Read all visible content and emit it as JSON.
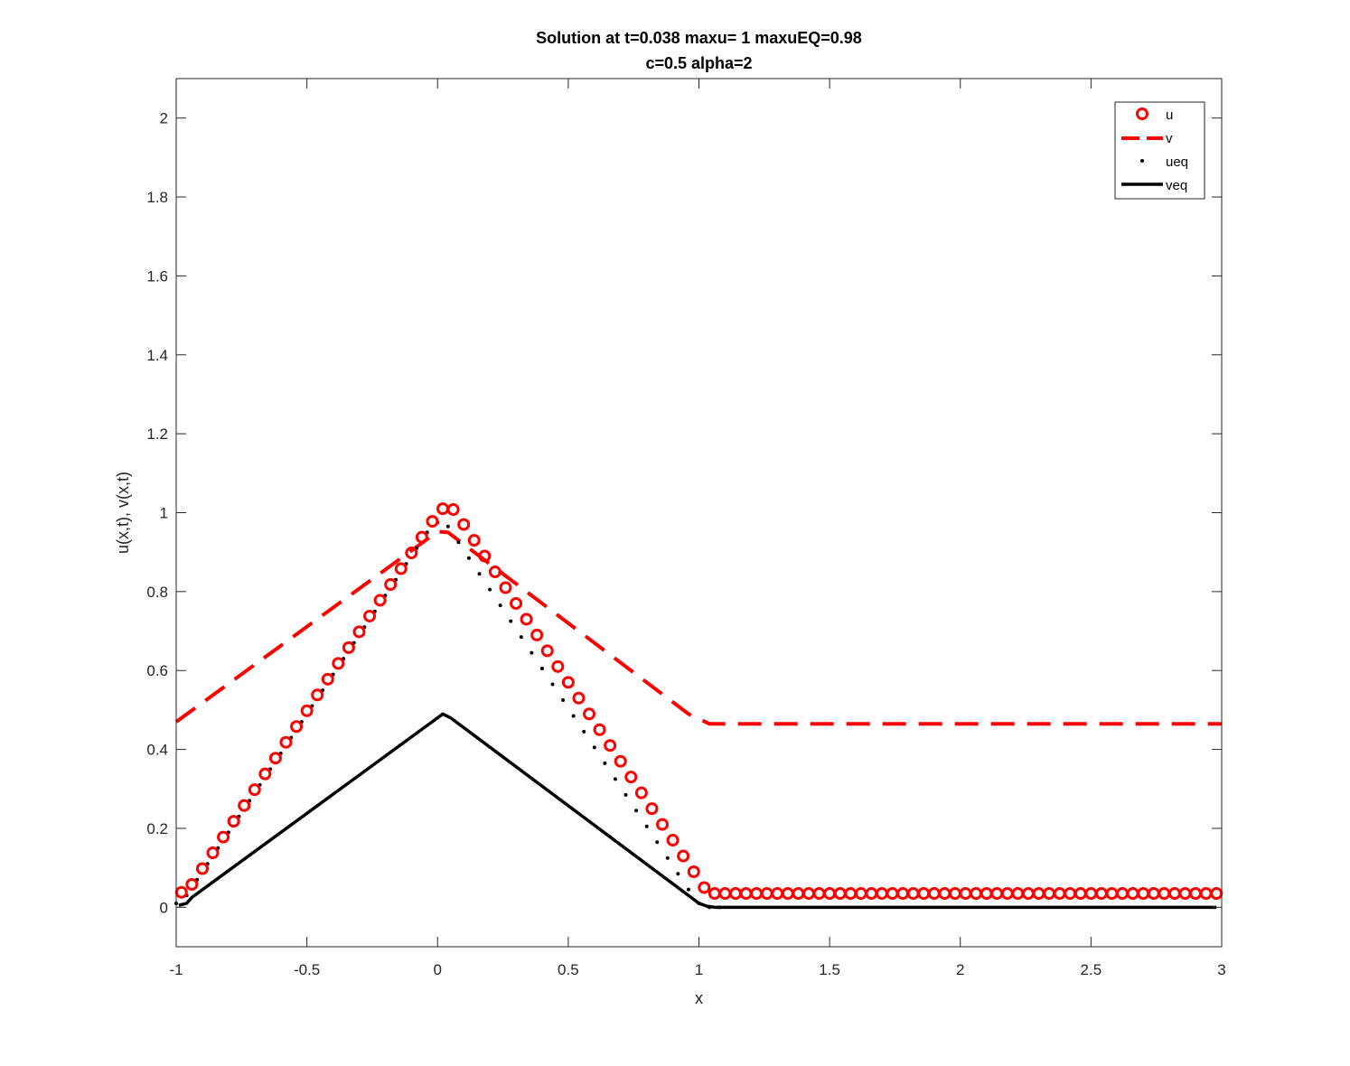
{
  "chart_data": {
    "type": "line",
    "title": [
      "Solution at t=0.038 maxu=   1 maxuEQ=0.98",
      "c=0.5 alpha=2"
    ],
    "xlabel": "x",
    "ylabel": "u(x,t),  v(x,t)",
    "xlim": [
      -1,
      3
    ],
    "ylim": [
      -0.1,
      2.1
    ],
    "xticks": [
      -1,
      -0.5,
      0,
      0.5,
      1,
      1.5,
      2,
      2.5,
      3
    ],
    "xtick_labels": [
      "-1",
      "-0.5",
      "0",
      "0.5",
      "1",
      "1.5",
      "2",
      "2.5",
      "3"
    ],
    "yticks": [
      0,
      0.2,
      0.4,
      0.6,
      0.8,
      1,
      1.2,
      1.4,
      1.6,
      1.8,
      2
    ],
    "ytick_labels": [
      "0",
      "0.2",
      "0.4",
      "0.6",
      "0.8",
      "1",
      "1.2",
      "1.4",
      "1.6",
      "1.8",
      "2"
    ],
    "grid": false,
    "legend_position": "top-right",
    "colors": {
      "red": "#ff0000",
      "black": "#000000",
      "axis": "#262626"
    },
    "series": [
      {
        "name": "u",
        "style": "circle-markers",
        "color": "#ff0000",
        "x": [
          -0.98,
          -0.94,
          -0.9,
          -0.86,
          -0.82,
          -0.78,
          -0.74,
          -0.7,
          -0.66,
          -0.62,
          -0.58,
          -0.54,
          -0.5,
          -0.46,
          -0.42,
          -0.38,
          -0.34,
          -0.3,
          -0.26,
          -0.22,
          -0.18,
          -0.14,
          -0.1,
          -0.06,
          -0.02,
          0.02,
          0.06,
          0.1,
          0.14,
          0.18,
          0.22,
          0.26,
          0.3,
          0.34,
          0.38,
          0.42,
          0.46,
          0.5,
          0.54,
          0.58,
          0.62,
          0.66,
          0.7,
          0.74,
          0.78,
          0.82,
          0.86,
          0.9,
          0.94,
          0.98,
          1.02,
          1.06,
          1.1,
          1.14,
          1.18,
          1.22,
          1.26,
          1.3,
          1.34,
          1.38,
          1.42,
          1.46,
          1.5,
          1.54,
          1.58,
          1.62,
          1.66,
          1.7,
          1.74,
          1.78,
          1.82,
          1.86,
          1.9,
          1.94,
          1.98,
          2.02,
          2.06,
          2.1,
          2.14,
          2.18,
          2.22,
          2.26,
          2.3,
          2.34,
          2.38,
          2.42,
          2.46,
          2.5,
          2.54,
          2.58,
          2.62,
          2.66,
          2.7,
          2.74,
          2.78,
          2.82,
          2.86,
          2.9,
          2.94,
          2.98
        ],
        "y": [
          0.038,
          0.058,
          0.098,
          0.138,
          0.178,
          0.218,
          0.258,
          0.298,
          0.338,
          0.378,
          0.418,
          0.458,
          0.498,
          0.538,
          0.578,
          0.618,
          0.658,
          0.698,
          0.738,
          0.778,
          0.818,
          0.858,
          0.898,
          0.938,
          0.978,
          1.01,
          1.008,
          0.97,
          0.93,
          0.89,
          0.85,
          0.81,
          0.77,
          0.73,
          0.69,
          0.65,
          0.61,
          0.57,
          0.53,
          0.49,
          0.45,
          0.41,
          0.37,
          0.33,
          0.29,
          0.25,
          0.21,
          0.17,
          0.13,
          0.09,
          0.05,
          0.035,
          0.035,
          0.035,
          0.035,
          0.035,
          0.035,
          0.035,
          0.035,
          0.035,
          0.035,
          0.035,
          0.035,
          0.035,
          0.035,
          0.035,
          0.035,
          0.035,
          0.035,
          0.035,
          0.035,
          0.035,
          0.035,
          0.035,
          0.035,
          0.035,
          0.035,
          0.035,
          0.035,
          0.035,
          0.035,
          0.035,
          0.035,
          0.035,
          0.035,
          0.035,
          0.035,
          0.035,
          0.035,
          0.035,
          0.035,
          0.035,
          0.035,
          0.035,
          0.035,
          0.035,
          0.035,
          0.035,
          0.035,
          0.035
        ]
      },
      {
        "name": "v",
        "style": "dashed",
        "color": "#ff0000",
        "x": [
          -1,
          0,
          0.04,
          0.96,
          1.04,
          3
        ],
        "y": [
          0.47,
          0.952,
          0.95,
          0.49,
          0.465,
          0.465
        ]
      },
      {
        "name": "ueq",
        "style": "dots",
        "color": "#000000",
        "x": [
          -1,
          -0.96,
          -0.92,
          -0.88,
          -0.84,
          -0.8,
          -0.76,
          -0.72,
          -0.68,
          -0.64,
          -0.6,
          -0.56,
          -0.52,
          -0.48,
          -0.44,
          -0.4,
          -0.36,
          -0.32,
          -0.28,
          -0.24,
          -0.2,
          -0.16,
          -0.12,
          -0.08,
          -0.04,
          0,
          0.04,
          0.08,
          0.12,
          0.16,
          0.2,
          0.24,
          0.28,
          0.32,
          0.36,
          0.4,
          0.44,
          0.48,
          0.52,
          0.56,
          0.6,
          0.64,
          0.68,
          0.72,
          0.76,
          0.8,
          0.84,
          0.88,
          0.92,
          0.96,
          1,
          1.04,
          1.08
        ],
        "y": [
          0.01,
          0.03,
          0.07,
          0.11,
          0.15,
          0.19,
          0.23,
          0.27,
          0.31,
          0.35,
          0.39,
          0.43,
          0.47,
          0.51,
          0.55,
          0.59,
          0.63,
          0.67,
          0.71,
          0.75,
          0.79,
          0.83,
          0.87,
          0.91,
          0.95,
          0.975,
          0.965,
          0.925,
          0.885,
          0.845,
          0.805,
          0.765,
          0.725,
          0.685,
          0.645,
          0.605,
          0.565,
          0.525,
          0.485,
          0.445,
          0.405,
          0.365,
          0.325,
          0.285,
          0.245,
          0.205,
          0.165,
          0.125,
          0.085,
          0.045,
          0.01,
          0.0,
          0.0
        ]
      },
      {
        "name": "veq",
        "style": "solid",
        "color": "#000000",
        "x": [
          -0.99,
          -0.96,
          -0.94,
          0,
          0.02,
          0.05,
          0.97,
          1.0,
          1.03,
          1.06,
          2.98
        ],
        "y": [
          0.005,
          0.01,
          0.025,
          0.48,
          0.49,
          0.48,
          0.025,
          0.01,
          0.003,
          0.0,
          0.0
        ]
      }
    ]
  }
}
